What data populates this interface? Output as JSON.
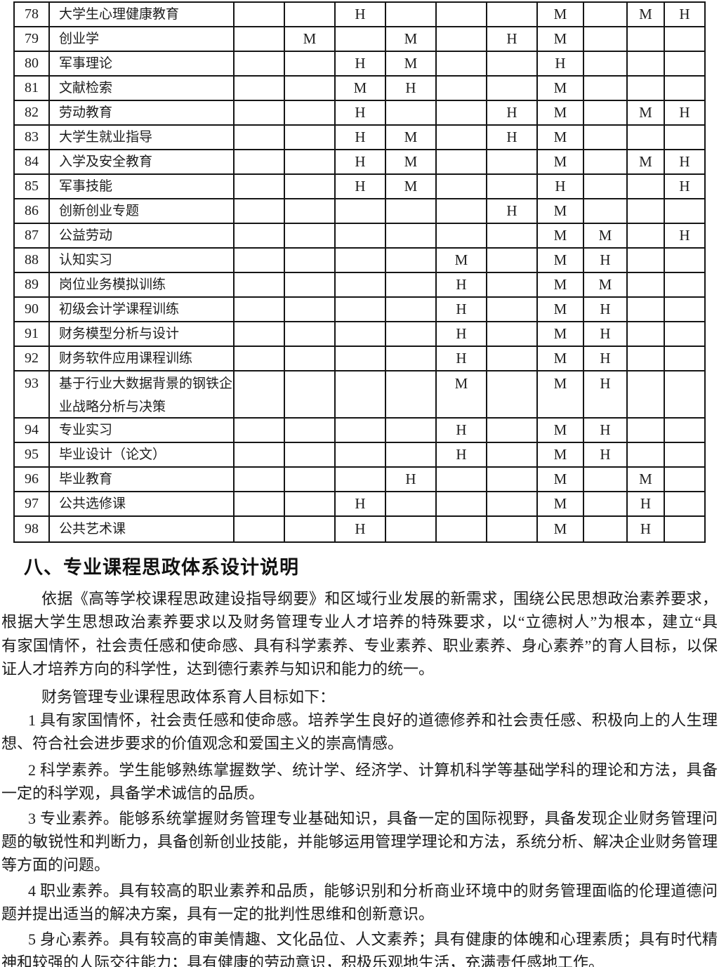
{
  "page": {
    "background": "#ffffff",
    "text_color": "#1c1c1c",
    "border_color": "#161616"
  },
  "table": {
    "rows": [
      {
        "num": "78",
        "name": "大学生心理健康教育",
        "marks": [
          "",
          "",
          "H",
          "",
          "",
          "",
          "M",
          "",
          "M",
          "H"
        ]
      },
      {
        "num": "79",
        "name": "创业学",
        "marks": [
          "",
          "M",
          "",
          "M",
          "",
          "H",
          "M",
          "",
          "",
          ""
        ]
      },
      {
        "num": "80",
        "name": "军事理论",
        "marks": [
          "",
          "",
          "H",
          "M",
          "",
          "",
          "H",
          "",
          "",
          ""
        ]
      },
      {
        "num": "81",
        "name": "文献检索",
        "marks": [
          "",
          "",
          "M",
          "H",
          "",
          "",
          "M",
          "",
          "",
          ""
        ]
      },
      {
        "num": "82",
        "name": "劳动教育",
        "marks": [
          "",
          "",
          "H",
          "",
          "",
          "H",
          "M",
          "",
          "M",
          "H"
        ]
      },
      {
        "num": "83",
        "name": "大学生就业指导",
        "marks": [
          "",
          "",
          "H",
          "M",
          "",
          "H",
          "M",
          "",
          "",
          ""
        ]
      },
      {
        "num": "84",
        "name": "入学及安全教育",
        "marks": [
          "",
          "",
          "H",
          "M",
          "",
          "",
          "M",
          "",
          "M",
          "H"
        ]
      },
      {
        "num": "85",
        "name": "军事技能",
        "marks": [
          "",
          "",
          "H",
          "M",
          "",
          "",
          "H",
          "",
          "",
          "H"
        ]
      },
      {
        "num": "86",
        "name": "创新创业专题",
        "marks": [
          "",
          "",
          "",
          "",
          "",
          "H",
          "M",
          "",
          "",
          ""
        ]
      },
      {
        "num": "87",
        "name": "公益劳动",
        "marks": [
          "",
          "",
          "",
          "",
          "",
          "",
          "M",
          "M",
          "",
          "H"
        ]
      },
      {
        "num": "88",
        "name": "认知实习",
        "marks": [
          "",
          "",
          "",
          "",
          "M",
          "",
          "M",
          "H",
          "",
          ""
        ]
      },
      {
        "num": "89",
        "name": "岗位业务模拟训练",
        "marks": [
          "",
          "",
          "",
          "",
          "H",
          "",
          "M",
          "M",
          "",
          ""
        ]
      },
      {
        "num": "90",
        "name": "初级会计学课程训练",
        "marks": [
          "",
          "",
          "",
          "",
          "H",
          "",
          "M",
          "H",
          "",
          ""
        ]
      },
      {
        "num": "91",
        "name": "财务模型分析与设计",
        "marks": [
          "",
          "",
          "",
          "",
          "H",
          "",
          "M",
          "H",
          "",
          ""
        ]
      },
      {
        "num": "92",
        "name": "财务软件应用课程训练",
        "marks": [
          "",
          "",
          "",
          "",
          "H",
          "",
          "M",
          "H",
          "",
          ""
        ]
      },
      {
        "num": "93",
        "name": "基于行业大数据背景的钢铁企业战略分析与决策",
        "tall": true,
        "marks": [
          "",
          "",
          "",
          "",
          "M",
          "",
          "M",
          "H",
          "",
          ""
        ]
      },
      {
        "num": "94",
        "name": "专业实习",
        "marks": [
          "",
          "",
          "",
          "",
          "H",
          "",
          "M",
          "H",
          "",
          ""
        ]
      },
      {
        "num": "95",
        "name": "毕业设计（论文）",
        "marks": [
          "",
          "",
          "",
          "",
          "H",
          "",
          "M",
          "H",
          "",
          ""
        ]
      },
      {
        "num": "96",
        "name": "毕业教育",
        "marks": [
          "",
          "",
          "",
          "H",
          "",
          "",
          "M",
          "",
          "M",
          ""
        ]
      },
      {
        "num": "97",
        "name": "公共选修课",
        "marks": [
          "",
          "",
          "H",
          "",
          "",
          "",
          "M",
          "",
          "H",
          ""
        ]
      },
      {
        "num": "98",
        "name": "公共艺术课",
        "marks": [
          "",
          "",
          "H",
          "",
          "",
          "",
          "M",
          "",
          "H",
          ""
        ]
      }
    ]
  },
  "heading": {
    "text": "八、专业课程思政体系设计说明"
  },
  "body": {
    "paragraphs": [
      {
        "gap": 0,
        "lines": [
          {
            "text": "依据《高等学校课程思政建设指导纲要》和区域行业发展的新需求，围绕公民思想政治素养要求，",
            "indent": 57,
            "full": true
          },
          {
            "text": "根据大学生思想政治素养要求以及财务管理专业人才培养的特殊要求，以“立德树人”为根本，建立“具",
            "indent": 0,
            "full": true
          },
          {
            "text": "有家国情怀，社会责任感和使命感、具有科学素养、专业素养、职业素养、身心素养”的育人目标，以保",
            "indent": 0,
            "full": true
          },
          {
            "text": "证人才培养方向的科学性，达到德行素养与知识和能力的统一。",
            "indent": 0,
            "full": false
          }
        ]
      },
      {
        "gap": 6,
        "lines": [
          {
            "text": "财务管理专业课程思政体系育人目标如下：",
            "indent": 57,
            "full": false
          }
        ]
      },
      {
        "gap": 0,
        "lines": [
          {
            "text": "1 具有家国情怀，社会责任感和使命感。培养学生良好的道德修养和社会责任感、积极向上的人生理",
            "indent": 38,
            "full": true
          },
          {
            "text": "想、符合社会进步要求的价值观念和爱国主义的崇高情感。",
            "indent": 0,
            "full": false
          }
        ]
      },
      {
        "gap": 4,
        "lines": [
          {
            "text": "2 科学素养。学生能够熟练掌握数学、统计学、经济学、计算机科学等基础学科的理论和方法，具备",
            "indent": 38,
            "full": true
          },
          {
            "text": "一定的科学观，具备学术诚信的品质。",
            "indent": 0,
            "full": false
          }
        ]
      },
      {
        "gap": 2,
        "lines": [
          {
            "text": "3 专业素养。能够系统掌握财务管理专业基础知识，具备一定的国际视野，具备发现企业财务管理问",
            "indent": 38,
            "full": true
          },
          {
            "text": "题的敏锐性和判断力，具备创新创业技能，并能够运用管理学理论和方法，系统分析、解决企业财务管理",
            "indent": 0,
            "full": true
          },
          {
            "text": "等方面的问题。",
            "indent": 0,
            "full": false
          }
        ]
      },
      {
        "gap": 3,
        "lines": [
          {
            "text": "4 职业素养。具有较高的职业素养和品质，能够识别和分析商业环境中的财务管理面临的伦理道德问",
            "indent": 38,
            "full": true
          },
          {
            "text": "题并提出适当的解决方案，具有一定的批判性思维和创新意识。",
            "indent": 0,
            "full": false
          }
        ]
      },
      {
        "gap": 2,
        "lines": [
          {
            "text": "5 身心素养。具有较高的审美情趣、文化品位、人文素养；具有健康的体魄和心理素质；具有时代精",
            "indent": 38,
            "full": true
          },
          {
            "text": "神和较强的人际交往能力；具有健康的劳动意识，积极乐观地生活，充满责任感地工作。",
            "indent": 0,
            "full": false
          }
        ]
      }
    ]
  }
}
